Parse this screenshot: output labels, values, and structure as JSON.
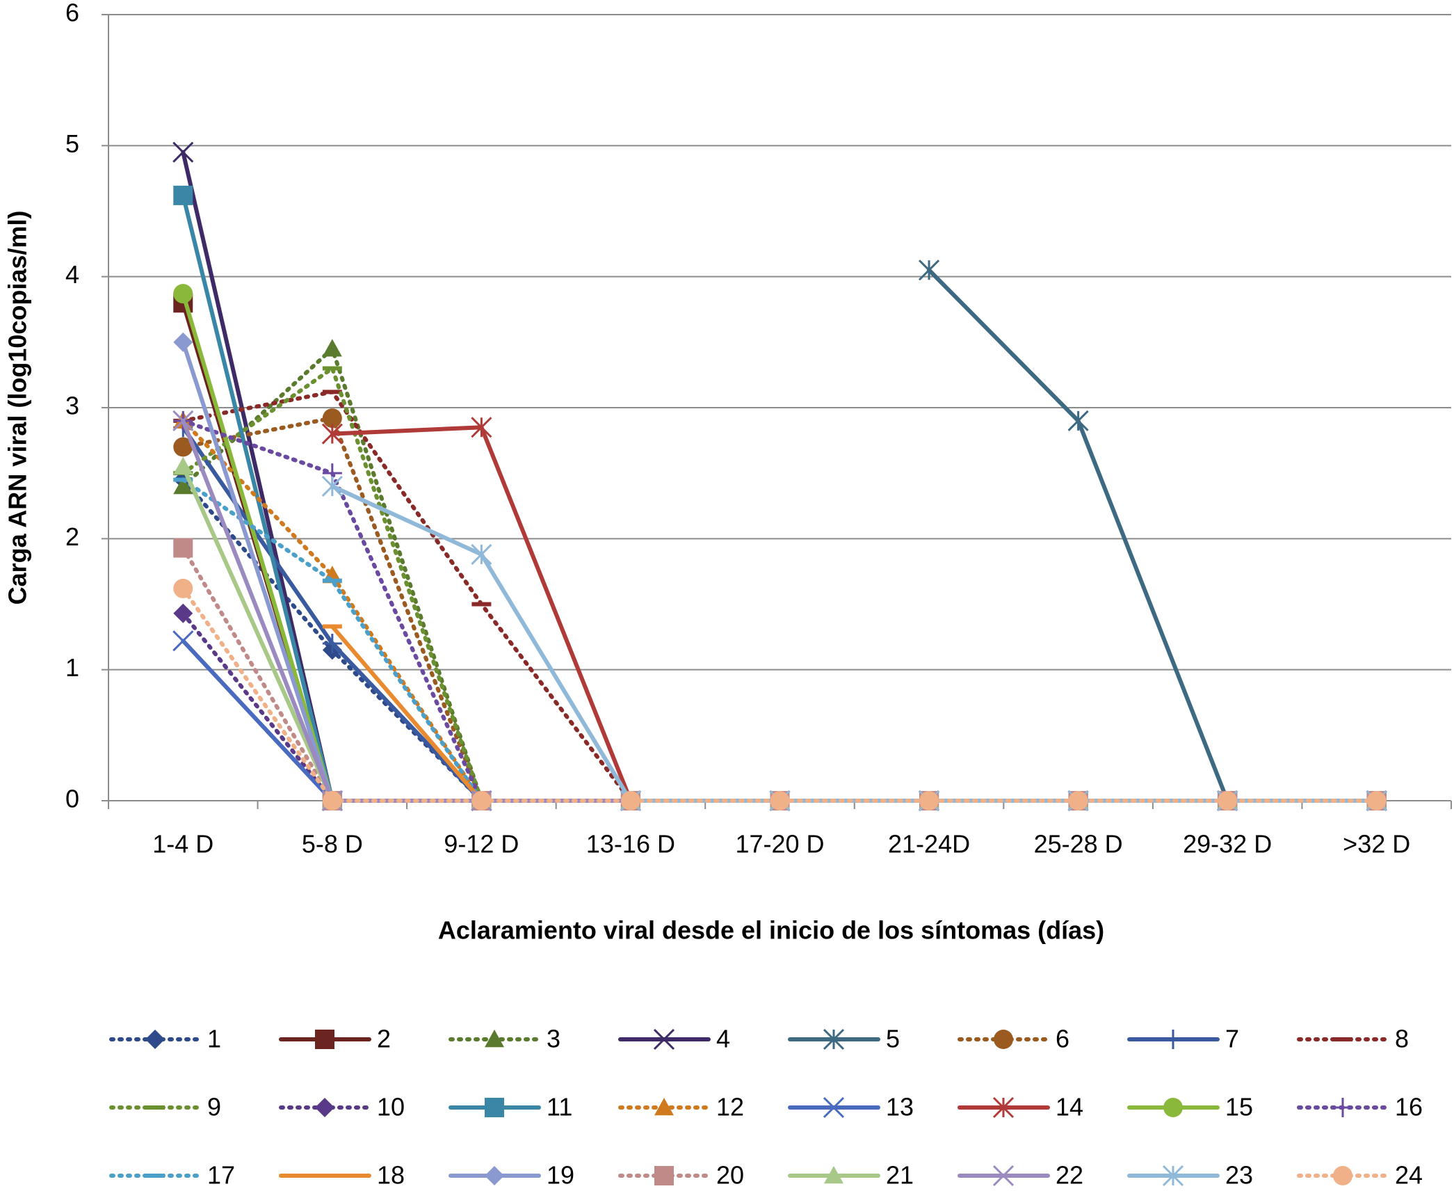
{
  "chart_data": {
    "type": "line",
    "x_label": "Aclaramiento viral desde el inicio de los síntomas (días)",
    "y_label": "Carga ARN viral (log10copias/ml)",
    "categories": [
      "1-4 D",
      "5-8 D",
      "9-12 D",
      "13-16 D",
      "17-20 D",
      "21-24D",
      "25-28 D",
      "29-32 D",
      ">32 D"
    ],
    "ylim": [
      0,
      6
    ],
    "yticks": [
      0,
      1,
      2,
      3,
      4,
      5,
      6
    ],
    "grid": true,
    "series": [
      {
        "name": "1",
        "color": "#2e4a8a",
        "marker": "diamond",
        "style": "dotted",
        "values": [
          2.45,
          1.15,
          0,
          0,
          0,
          0,
          0,
          0,
          0
        ]
      },
      {
        "name": "2",
        "color": "#6b2420",
        "marker": "square",
        "style": "solid",
        "values": [
          3.8,
          0,
          0,
          0,
          0,
          0,
          0,
          0,
          0
        ]
      },
      {
        "name": "3",
        "color": "#5a7a2e",
        "marker": "triangle",
        "style": "dotted",
        "values": [
          2.4,
          3.45,
          0,
          0,
          0,
          0,
          0,
          0,
          0
        ]
      },
      {
        "name": "4",
        "color": "#3d2a66",
        "marker": "x",
        "style": "solid",
        "values": [
          4.95,
          0,
          0,
          0,
          0,
          0,
          0,
          0,
          0
        ]
      },
      {
        "name": "5",
        "color": "#3d6a82",
        "marker": "asterisk",
        "style": "solid",
        "values": [
          null,
          null,
          null,
          null,
          null,
          4.05,
          2.9,
          0,
          0
        ]
      },
      {
        "name": "6",
        "color": "#9a5a20",
        "marker": "circle",
        "style": "dotted",
        "values": [
          2.7,
          2.92,
          0,
          0,
          0,
          0,
          0,
          0,
          0
        ]
      },
      {
        "name": "7",
        "color": "#3a5aa0",
        "marker": "plus",
        "style": "solid",
        "values": [
          2.85,
          1.2,
          0,
          0,
          0,
          0,
          0,
          0,
          0
        ]
      },
      {
        "name": "8",
        "color": "#8a2a28",
        "marker": "dash",
        "style": "dotted",
        "values": [
          2.9,
          3.12,
          1.5,
          0,
          0,
          0,
          0,
          0,
          0
        ]
      },
      {
        "name": "9",
        "color": "#6a9030",
        "marker": "dash",
        "style": "dotted",
        "values": [
          2.5,
          3.3,
          0,
          0,
          0,
          0,
          0,
          0,
          0
        ]
      },
      {
        "name": "10",
        "color": "#5a3a88",
        "marker": "diamond",
        "style": "dotted",
        "values": [
          1.43,
          0,
          0,
          0,
          0,
          0,
          0,
          0,
          0
        ]
      },
      {
        "name": "11",
        "color": "#3a86a6",
        "marker": "square",
        "style": "solid",
        "values": [
          4.62,
          0,
          0,
          0,
          0,
          0,
          0,
          0,
          0
        ]
      },
      {
        "name": "12",
        "color": "#d07a20",
        "marker": "triangle",
        "style": "dotted",
        "values": [
          2.9,
          1.72,
          0,
          0,
          0,
          0,
          0,
          0,
          0
        ]
      },
      {
        "name": "13",
        "color": "#4a6ac0",
        "marker": "x",
        "style": "solid",
        "values": [
          1.22,
          0,
          0,
          0,
          0,
          0,
          0,
          0,
          0
        ]
      },
      {
        "name": "14",
        "color": "#b03a38",
        "marker": "asterisk",
        "style": "solid",
        "values": [
          null,
          2.8,
          2.85,
          0,
          0,
          0,
          0,
          0,
          0
        ]
      },
      {
        "name": "15",
        "color": "#8ab83a",
        "marker": "circle",
        "style": "solid",
        "values": [
          3.87,
          0,
          0,
          0,
          0,
          0,
          0,
          0,
          0
        ]
      },
      {
        "name": "16",
        "color": "#6a4aa0",
        "marker": "plus",
        "style": "dotted",
        "values": [
          2.9,
          2.5,
          0,
          0,
          0,
          0,
          0,
          0,
          0
        ]
      },
      {
        "name": "17",
        "color": "#4aa0c8",
        "marker": "dash",
        "style": "dotted",
        "values": [
          2.45,
          1.68,
          0,
          0,
          0,
          0,
          0,
          0,
          0
        ]
      },
      {
        "name": "18",
        "color": "#e88a30",
        "marker": "dash",
        "style": "solid",
        "values": [
          null,
          1.33,
          0,
          0,
          0,
          0,
          0,
          0,
          0
        ]
      },
      {
        "name": "19",
        "color": "#8a9ad0",
        "marker": "diamond",
        "style": "solid",
        "values": [
          3.5,
          0,
          0,
          0,
          0,
          0,
          0,
          0,
          0
        ]
      },
      {
        "name": "20",
        "color": "#c08a88",
        "marker": "square",
        "style": "dotted",
        "values": [
          1.93,
          0,
          0,
          0,
          0,
          0,
          0,
          0,
          0
        ]
      },
      {
        "name": "21",
        "color": "#a8c888",
        "marker": "triangle",
        "style": "solid",
        "values": [
          2.55,
          0,
          0,
          0,
          0,
          0,
          0,
          0,
          0
        ]
      },
      {
        "name": "22",
        "color": "#9a8ac0",
        "marker": "x",
        "style": "solid",
        "values": [
          2.9,
          0,
          0,
          0,
          0,
          0,
          0,
          0,
          0
        ]
      },
      {
        "name": "23",
        "color": "#90b8d8",
        "marker": "asterisk",
        "style": "solid",
        "values": [
          null,
          2.4,
          1.88,
          0,
          0,
          0,
          0,
          0,
          0
        ]
      },
      {
        "name": "24",
        "color": "#f0b088",
        "marker": "circle",
        "style": "dotted",
        "values": [
          1.62,
          0,
          0,
          0,
          0,
          0,
          0,
          0,
          0
        ]
      }
    ]
  }
}
